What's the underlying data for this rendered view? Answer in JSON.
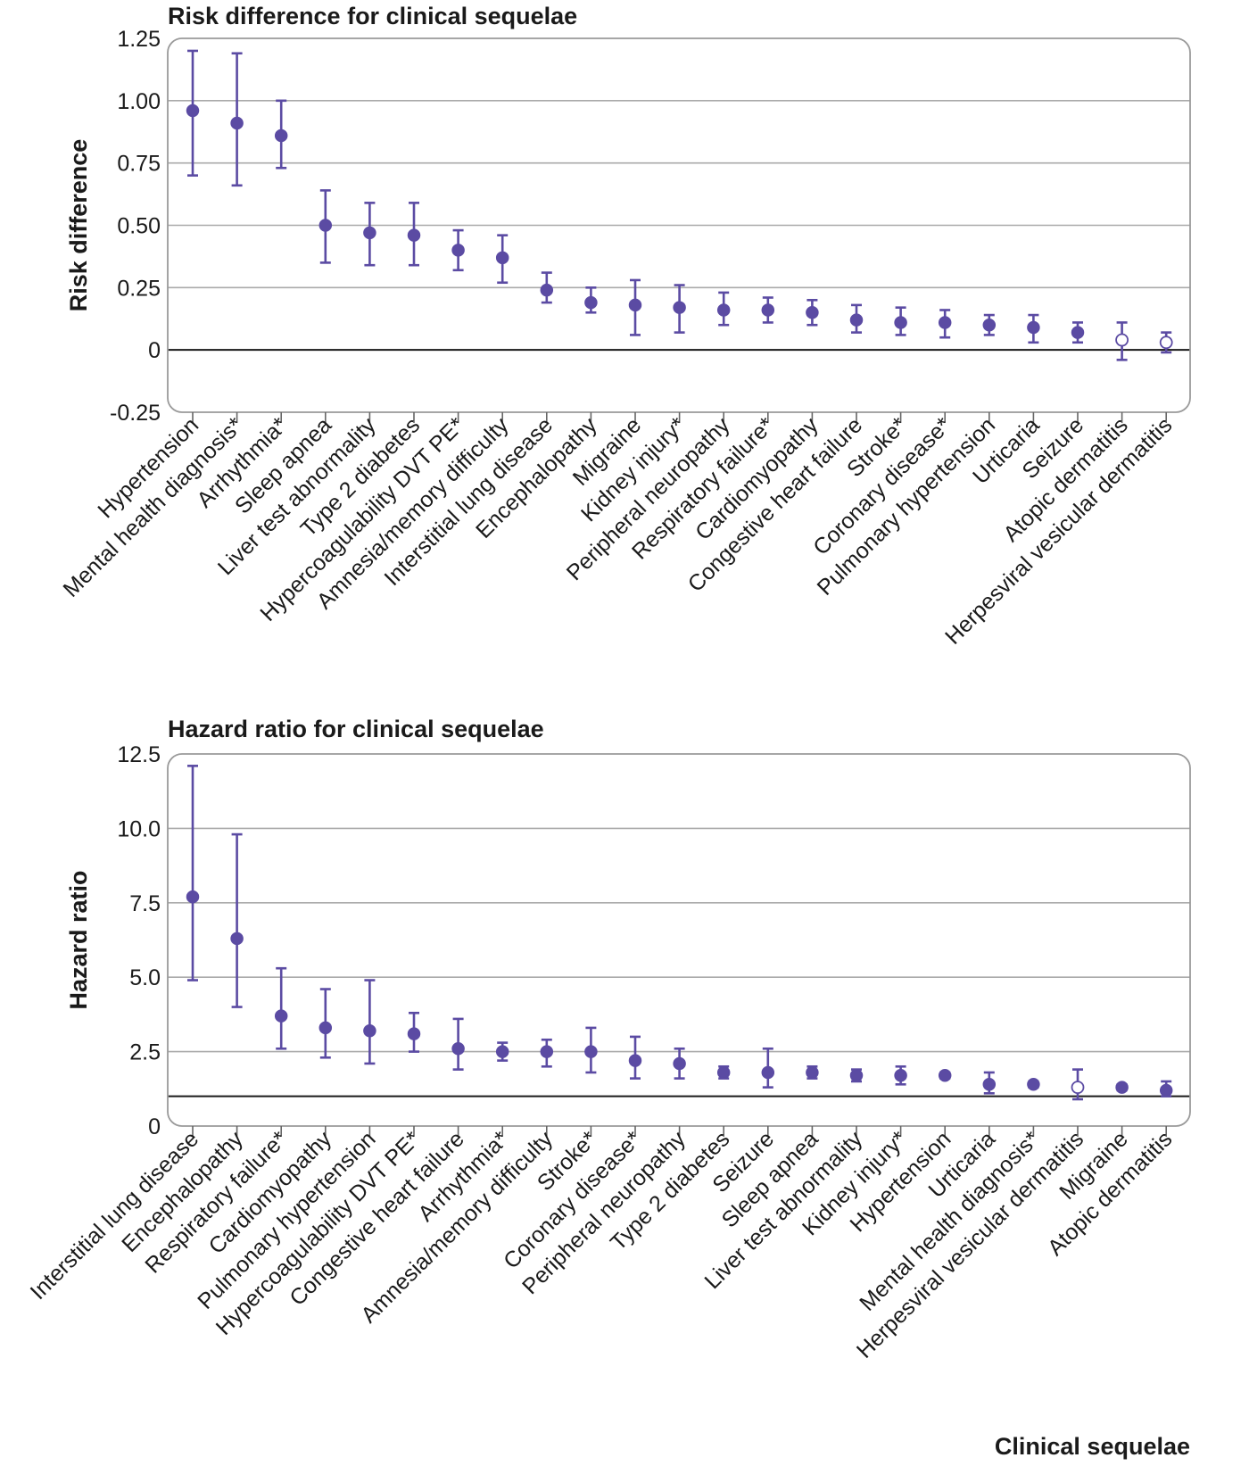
{
  "colors": {
    "accent": "#5b4ba3",
    "grid": "#aaaaaa",
    "frame": "#9a9a9a",
    "ref_line": "#1a1a1a"
  },
  "chart_data": [
    {
      "type": "scatter",
      "subtype": "dot-with-error-bars",
      "title": "Risk difference for clinical sequelae",
      "ylabel": "Risk difference",
      "xlabel": "",
      "ylim": [
        -0.25,
        1.25
      ],
      "yticks": [
        "-0.25",
        "0",
        "0.25",
        "0.50",
        "0.75",
        "1.00",
        "1.25"
      ],
      "reference_line": 0,
      "grid": true,
      "open_marker": "not significant (hollow marker)",
      "categories": [
        "Hypertension",
        "Mental health diagnosis*",
        "Arrhythmia*",
        "Sleep apnea",
        "Liver test abnormality",
        "Type 2 diabetes",
        "Hypercoagulability DVT PE*",
        "Amnesia/memory difficulty",
        "Interstitial lung disease",
        "Encephalopathy",
        "Migraine",
        "Kidney injury*",
        "Peripheral neuropathy",
        "Respiratory failure*",
        "Cardiomyopathy",
        "Congestive heart failure",
        "Stroke*",
        "Coronary disease*",
        "Pulmonary hypertension",
        "Urticaria",
        "Seizure",
        "Atopic dermatitis",
        "Herpesviral vesicular dermatitis"
      ],
      "values": [
        0.96,
        0.91,
        0.86,
        0.5,
        0.47,
        0.46,
        0.4,
        0.37,
        0.24,
        0.19,
        0.18,
        0.17,
        0.16,
        0.16,
        0.15,
        0.12,
        0.11,
        0.11,
        0.1,
        0.09,
        0.07,
        0.04,
        0.03
      ],
      "lower": [
        0.7,
        0.66,
        0.73,
        0.35,
        0.34,
        0.34,
        0.32,
        0.27,
        0.19,
        0.15,
        0.06,
        0.07,
        0.1,
        0.11,
        0.1,
        0.07,
        0.06,
        0.05,
        0.06,
        0.03,
        0.03,
        -0.04,
        -0.01
      ],
      "upper": [
        1.2,
        1.19,
        1.0,
        0.64,
        0.59,
        0.59,
        0.48,
        0.46,
        0.31,
        0.25,
        0.28,
        0.26,
        0.23,
        0.21,
        0.2,
        0.18,
        0.17,
        0.16,
        0.14,
        0.14,
        0.11,
        0.11,
        0.07
      ],
      "significant": [
        true,
        true,
        true,
        true,
        true,
        true,
        true,
        true,
        true,
        true,
        true,
        true,
        true,
        true,
        true,
        true,
        true,
        true,
        true,
        true,
        true,
        false,
        false
      ]
    },
    {
      "type": "scatter",
      "subtype": "dot-with-error-bars",
      "title": "Hazard ratio for clinical sequelae",
      "ylabel": "Hazard ratio",
      "xlabel": "Clinical sequelae",
      "ylim": [
        0,
        12.5
      ],
      "yticks": [
        "0",
        "2.5",
        "5.0",
        "7.5",
        "10.0",
        "12.5"
      ],
      "reference_line": 1,
      "grid": true,
      "open_marker": "not significant (hollow marker)",
      "categories": [
        "Interstitial lung disease",
        "Encephalopathy",
        "Respiratory failure*",
        "Cardiomyopathy",
        "Pulmonary hypertension",
        "Hypercoagulability DVT PE*",
        "Congestive heart failure",
        "Arrhythmia*",
        "Amnesia/memory difficulty",
        "Stroke*",
        "Coronary disease*",
        "Peripheral neuropathy",
        "Type 2 diabetes",
        "Seizure",
        "Sleep apnea",
        "Liver test abnormality",
        "Kidney injury*",
        "Hypertension",
        "Urticaria",
        "Mental health diagnosis*",
        "Herpesviral vesicular dermatitis",
        "Migraine",
        "Atopic dermatitis"
      ],
      "values": [
        7.7,
        6.3,
        3.7,
        3.3,
        3.2,
        3.1,
        2.6,
        2.5,
        2.5,
        2.5,
        2.2,
        2.1,
        1.8,
        1.8,
        1.8,
        1.7,
        1.7,
        1.7,
        1.4,
        1.4,
        1.3,
        1.3,
        1.2
      ],
      "lower": [
        4.9,
        4.0,
        2.6,
        2.3,
        2.1,
        2.5,
        1.9,
        2.2,
        2.0,
        1.8,
        1.6,
        1.6,
        1.6,
        1.3,
        1.6,
        1.5,
        1.4,
        1.6,
        1.1,
        1.3,
        0.9,
        1.2,
        1.0
      ],
      "upper": [
        12.1,
        9.8,
        5.3,
        4.6,
        4.9,
        3.8,
        3.6,
        2.8,
        2.9,
        3.3,
        3.0,
        2.6,
        2.0,
        2.6,
        2.0,
        1.9,
        2.0,
        1.8,
        1.8,
        1.5,
        1.9,
        1.4,
        1.5
      ],
      "significant": [
        true,
        true,
        true,
        true,
        true,
        true,
        true,
        true,
        true,
        true,
        true,
        true,
        true,
        true,
        true,
        true,
        true,
        true,
        true,
        true,
        false,
        true,
        true
      ]
    }
  ]
}
